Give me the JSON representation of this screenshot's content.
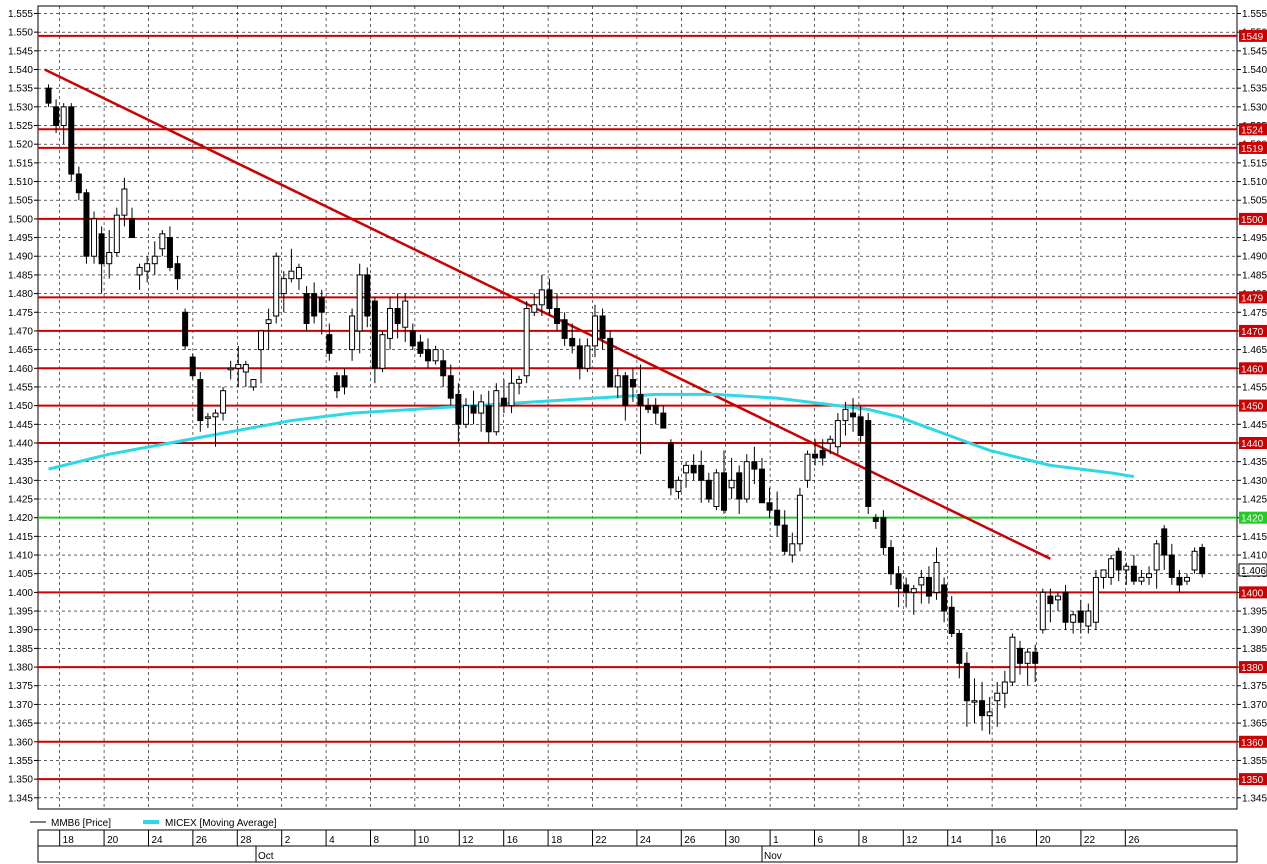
{
  "chart_data": {
    "type": "candlestick",
    "y_ticks": [
      "1.345",
      "1.350",
      "1.355",
      "1.360",
      "1.365",
      "1.370",
      "1.375",
      "1.380",
      "1.385",
      "1.390",
      "1.395",
      "1.400",
      "1.405",
      "1.410",
      "1.415",
      "1.420",
      "1.425",
      "1.430",
      "1.435",
      "1.440",
      "1.445",
      "1.450",
      "1.455",
      "1.460",
      "1.465",
      "1.470",
      "1.475",
      "1.480",
      "1.485",
      "1.490",
      "1.495",
      "1.500",
      "1.505",
      "1.510",
      "1.515",
      "1.520",
      "1.525",
      "1.530",
      "1.535",
      "1.540",
      "1.545",
      "1.550",
      "1.555"
    ],
    "ylim": [
      1.342,
      1.557
    ],
    "x_day_labels": [
      "18",
      "20",
      "24",
      "26",
      "28",
      "2",
      "4",
      "8",
      "10",
      "12",
      "16",
      "18",
      "22",
      "24",
      "26",
      "30",
      "1",
      "6",
      "8",
      "12",
      "14",
      "16",
      "20",
      "22",
      "26"
    ],
    "month_labels": [
      "Oct",
      "Nov"
    ],
    "grid": true,
    "legend": [
      {
        "name": "MMB6 [Price]",
        "color": "#000000"
      },
      {
        "name": "MICEX [Moving Average]",
        "color": "#2ed8e6"
      }
    ],
    "horizontal_levels": [
      {
        "value": 1.549,
        "label": "1549",
        "color": "#cc0000"
      },
      {
        "value": 1.524,
        "label": "1524",
        "color": "#cc0000"
      },
      {
        "value": 1.519,
        "label": "1519",
        "color": "#cc0000"
      },
      {
        "value": 1.5,
        "label": "1500",
        "color": "#cc0000"
      },
      {
        "value": 1.479,
        "label": "1479",
        "color": "#cc0000"
      },
      {
        "value": 1.47,
        "label": "1470",
        "color": "#cc0000"
      },
      {
        "value": 1.46,
        "label": "1460",
        "color": "#cc0000"
      },
      {
        "value": 1.45,
        "label": "1450",
        "color": "#cc0000"
      },
      {
        "value": 1.44,
        "label": "1440",
        "color": "#cc0000"
      },
      {
        "value": 1.42,
        "label": "1420",
        "color": "#22cc22"
      },
      {
        "value": 1.4,
        "label": "1400",
        "color": "#cc0000"
      },
      {
        "value": 1.38,
        "label": "1380",
        "color": "#cc0000"
      },
      {
        "value": 1.36,
        "label": "1360",
        "color": "#cc0000"
      },
      {
        "value": 1.35,
        "label": "1350",
        "color": "#cc0000"
      }
    ],
    "current_price_label": "1.406",
    "trendline": {
      "color": "#cc0000",
      "from": {
        "bar": -0.5,
        "value": 1.54
      },
      "to": {
        "bar": 132,
        "value": 1.409
      }
    },
    "candles": [
      [
        1.535,
        1.536,
        1.53,
        1.531
      ],
      [
        1.53,
        1.532,
        1.523,
        1.525
      ],
      [
        1.525,
        1.531,
        1.52,
        1.53
      ],
      [
        1.53,
        1.531,
        1.51,
        1.512
      ],
      [
        1.512,
        1.514,
        1.505,
        1.507
      ],
      [
        1.507,
        1.508,
        1.488,
        1.49
      ],
      [
        1.49,
        1.502,
        1.488,
        1.5
      ],
      [
        1.496,
        1.498,
        1.48,
        1.488
      ],
      [
        1.488,
        1.497,
        1.484,
        1.491
      ],
      [
        1.491,
        1.503,
        1.49,
        1.501
      ],
      [
        1.501,
        1.511,
        1.498,
        1.508
      ],
      [
        1.5,
        1.503,
        1.495,
        1.495
      ],
      [
        1.485,
        1.488,
        1.481,
        1.487
      ],
      [
        1.486,
        1.49,
        1.483,
        1.488
      ],
      [
        1.488,
        1.494,
        1.485,
        1.49
      ],
      [
        1.492,
        1.497,
        1.49,
        1.496
      ],
      [
        1.495,
        1.498,
        1.486,
        1.487
      ],
      [
        1.488,
        1.49,
        1.481,
        1.484
      ],
      [
        1.475,
        1.476,
        1.465,
        1.466
      ],
      [
        1.463,
        1.464,
        1.457,
        1.458
      ],
      [
        1.457,
        1.459,
        1.443,
        1.446
      ],
      [
        1.447,
        1.448,
        1.444,
        1.447
      ],
      [
        1.447,
        1.449,
        1.439,
        1.448
      ],
      [
        1.448,
        1.455,
        1.446,
        1.454
      ],
      [
        1.46,
        1.462,
        1.457,
        1.46
      ],
      [
        1.46,
        1.466,
        1.455,
        1.461
      ],
      [
        1.459,
        1.462,
        1.455,
        1.461
      ],
      [
        1.455,
        1.457,
        1.454,
        1.457
      ],
      [
        1.465,
        1.47,
        1.456,
        1.47
      ],
      [
        1.472,
        1.476,
        1.465,
        1.473
      ],
      [
        1.474,
        1.491,
        1.472,
        1.49
      ],
      [
        1.48,
        1.486,
        1.475,
        1.484
      ],
      [
        1.484,
        1.492,
        1.483,
        1.486
      ],
      [
        1.484,
        1.488,
        1.481,
        1.487
      ],
      [
        1.48,
        1.482,
        1.47,
        1.472
      ],
      [
        1.48,
        1.483,
        1.472,
        1.474
      ],
      [
        1.479,
        1.481,
        1.469,
        1.475
      ],
      [
        1.469,
        1.472,
        1.462,
        1.464
      ],
      [
        1.458,
        1.459,
        1.452,
        1.454
      ],
      [
        1.458,
        1.46,
        1.453,
        1.455
      ],
      [
        1.465,
        1.476,
        1.462,
        1.474
      ],
      [
        1.47,
        1.488,
        1.464,
        1.485
      ],
      [
        1.485,
        1.487,
        1.471,
        1.474
      ],
      [
        1.478,
        1.479,
        1.456,
        1.46
      ],
      [
        1.46,
        1.47,
        1.459,
        1.469
      ],
      [
        1.468,
        1.479,
        1.465,
        1.476
      ],
      [
        1.476,
        1.48,
        1.468,
        1.472
      ],
      [
        1.471,
        1.48,
        1.467,
        1.478
      ],
      [
        1.47,
        1.472,
        1.465,
        1.466
      ],
      [
        1.467,
        1.469,
        1.463,
        1.464
      ],
      [
        1.465,
        1.468,
        1.46,
        1.462
      ],
      [
        1.462,
        1.466,
        1.461,
        1.465
      ],
      [
        1.462,
        1.465,
        1.455,
        1.458
      ],
      [
        1.458,
        1.461,
        1.45,
        1.452
      ],
      [
        1.453,
        1.456,
        1.44,
        1.445
      ],
      [
        1.445,
        1.452,
        1.444,
        1.45
      ],
      [
        1.45,
        1.454,
        1.445,
        1.448
      ],
      [
        1.448,
        1.453,
        1.443,
        1.451
      ],
      [
        1.45,
        1.454,
        1.44,
        1.443
      ],
      [
        1.443,
        1.456,
        1.442,
        1.454
      ],
      [
        1.452,
        1.457,
        1.448,
        1.45
      ],
      [
        1.45,
        1.46,
        1.448,
        1.456
      ],
      [
        1.456,
        1.458,
        1.453,
        1.457
      ],
      [
        1.458,
        1.478,
        1.456,
        1.476
      ],
      [
        1.475,
        1.48,
        1.474,
        1.477
      ],
      [
        1.477,
        1.485,
        1.474,
        1.481
      ],
      [
        1.481,
        1.484,
        1.474,
        1.476
      ],
      [
        1.476,
        1.48,
        1.47,
        1.472
      ],
      [
        1.473,
        1.475,
        1.466,
        1.468
      ],
      [
        1.468,
        1.472,
        1.464,
        1.466
      ],
      [
        1.466,
        1.468,
        1.457,
        1.46
      ],
      [
        1.46,
        1.468,
        1.459,
        1.466
      ],
      [
        1.466,
        1.477,
        1.463,
        1.474
      ],
      [
        1.474,
        1.476,
        1.465,
        1.468
      ],
      [
        1.468,
        1.47,
        1.455,
        1.455
      ],
      [
        1.455,
        1.46,
        1.452,
        1.458
      ],
      [
        1.458,
        1.459,
        1.446,
        1.45
      ],
      [
        1.457,
        1.46,
        1.451,
        1.455
      ],
      [
        1.453,
        1.461,
        1.437,
        1.45
      ],
      [
        1.45,
        1.452,
        1.448,
        1.449
      ],
      [
        1.45,
        1.452,
        1.445,
        1.448
      ],
      [
        1.448,
        1.45,
        1.444,
        1.444
      ],
      [
        1.44,
        1.441,
        1.426,
        1.428
      ],
      [
        1.427,
        1.431,
        1.425,
        1.43
      ],
      [
        1.432,
        1.435,
        1.428,
        1.434
      ],
      [
        1.434,
        1.437,
        1.43,
        1.432
      ],
      [
        1.434,
        1.438,
        1.424,
        1.43
      ],
      [
        1.43,
        1.432,
        1.424,
        1.425
      ],
      [
        1.423,
        1.433,
        1.422,
        1.432
      ],
      [
        1.432,
        1.438,
        1.421,
        1.422
      ],
      [
        1.428,
        1.436,
        1.425,
        1.43
      ],
      [
        1.432,
        1.434,
        1.421,
        1.425
      ],
      [
        1.425,
        1.437,
        1.424,
        1.435
      ],
      [
        1.435,
        1.439,
        1.429,
        1.433
      ],
      [
        1.433,
        1.436,
        1.424,
        1.424
      ],
      [
        1.424,
        1.428,
        1.42,
        1.422
      ],
      [
        1.422,
        1.427,
        1.415,
        1.418
      ],
      [
        1.418,
        1.422,
        1.41,
        1.411
      ],
      [
        1.41,
        1.416,
        1.408,
        1.413
      ],
      [
        1.413,
        1.428,
        1.411,
        1.426
      ],
      [
        1.43,
        1.438,
        1.428,
        1.437
      ],
      [
        1.437,
        1.441,
        1.434,
        1.436
      ],
      [
        1.438,
        1.441,
        1.434,
        1.436
      ],
      [
        1.44,
        1.442,
        1.437,
        1.441
      ],
      [
        1.439,
        1.448,
        1.437,
        1.446
      ],
      [
        1.446,
        1.451,
        1.442,
        1.449
      ],
      [
        1.448,
        1.452,
        1.443,
        1.447
      ],
      [
        1.447,
        1.45,
        1.44,
        1.442
      ],
      [
        1.446,
        1.448,
        1.421,
        1.423
      ],
      [
        1.42,
        1.421,
        1.417,
        1.419
      ],
      [
        1.42,
        1.422,
        1.41,
        1.412
      ],
      [
        1.412,
        1.414,
        1.402,
        1.405
      ],
      [
        1.405,
        1.407,
        1.396,
        1.401
      ],
      [
        1.402,
        1.404,
        1.396,
        1.4
      ],
      [
        1.4,
        1.402,
        1.394,
        1.401
      ],
      [
        1.402,
        1.406,
        1.397,
        1.404
      ],
      [
        1.404,
        1.407,
        1.397,
        1.399
      ],
      [
        1.4,
        1.412,
        1.398,
        1.408
      ],
      [
        1.402,
        1.404,
        1.392,
        1.395
      ],
      [
        1.396,
        1.399,
        1.388,
        1.389
      ],
      [
        1.389,
        1.39,
        1.377,
        1.381
      ],
      [
        1.381,
        1.384,
        1.364,
        1.371
      ],
      [
        1.371,
        1.377,
        1.365,
        1.371
      ],
      [
        1.371,
        1.376,
        1.363,
        1.367
      ],
      [
        1.367,
        1.372,
        1.362,
        1.368
      ],
      [
        1.371,
        1.376,
        1.364,
        1.373
      ],
      [
        1.373,
        1.379,
        1.369,
        1.376
      ],
      [
        1.376,
        1.389,
        1.375,
        1.388
      ],
      [
        1.385,
        1.387,
        1.378,
        1.381
      ],
      [
        1.381,
        1.385,
        1.375,
        1.384
      ],
      [
        1.384,
        1.386,
        1.376,
        1.381
      ],
      [
        1.39,
        1.401,
        1.389,
        1.4
      ],
      [
        1.399,
        1.401,
        1.392,
        1.397
      ],
      [
        1.398,
        1.4,
        1.395,
        1.399
      ],
      [
        1.4,
        1.402,
        1.39,
        1.392
      ],
      [
        1.392,
        1.395,
        1.389,
        1.394
      ],
      [
        1.395,
        1.398,
        1.389,
        1.392
      ],
      [
        1.391,
        1.397,
        1.389,
        1.395
      ],
      [
        1.392,
        1.406,
        1.39,
        1.404
      ],
      [
        1.404,
        1.406,
        1.401,
        1.406
      ],
      [
        1.404,
        1.41,
        1.402,
        1.409
      ],
      [
        1.411,
        1.412,
        1.403,
        1.406
      ],
      [
        1.406,
        1.408,
        1.402,
        1.407
      ],
      [
        1.407,
        1.41,
        1.402,
        1.403
      ],
      [
        1.403,
        1.406,
        1.402,
        1.404
      ],
      [
        1.404,
        1.407,
        1.402,
        1.405
      ],
      [
        1.406,
        1.414,
        1.401,
        1.413
      ],
      [
        1.417,
        1.418,
        1.406,
        1.41
      ],
      [
        1.41,
        1.413,
        1.402,
        1.404
      ],
      [
        1.404,
        1.406,
        1.4,
        1.402
      ],
      [
        1.403,
        1.405,
        1.402,
        1.404
      ],
      [
        1.406,
        1.412,
        1.405,
        1.411
      ],
      [
        1.412,
        1.413,
        1.404,
        1.405
      ]
    ],
    "moving_average": [
      [
        0,
        1.433
      ],
      [
        8,
        1.437
      ],
      [
        16,
        1.44
      ],
      [
        24,
        1.443
      ],
      [
        32,
        1.446
      ],
      [
        40,
        1.448
      ],
      [
        48,
        1.449
      ],
      [
        56,
        1.45
      ],
      [
        64,
        1.451
      ],
      [
        72,
        1.452
      ],
      [
        80,
        1.453
      ],
      [
        88,
        1.453
      ],
      [
        96,
        1.452
      ],
      [
        100,
        1.451
      ],
      [
        104,
        1.45
      ],
      [
        108,
        1.449
      ],
      [
        112,
        1.447
      ],
      [
        116,
        1.444
      ],
      [
        120,
        1.441
      ],
      [
        124,
        1.438
      ],
      [
        128,
        1.436
      ],
      [
        132,
        1.434
      ],
      [
        136,
        1.433
      ],
      [
        140,
        1.432
      ],
      [
        143,
        1.431
      ]
    ]
  }
}
